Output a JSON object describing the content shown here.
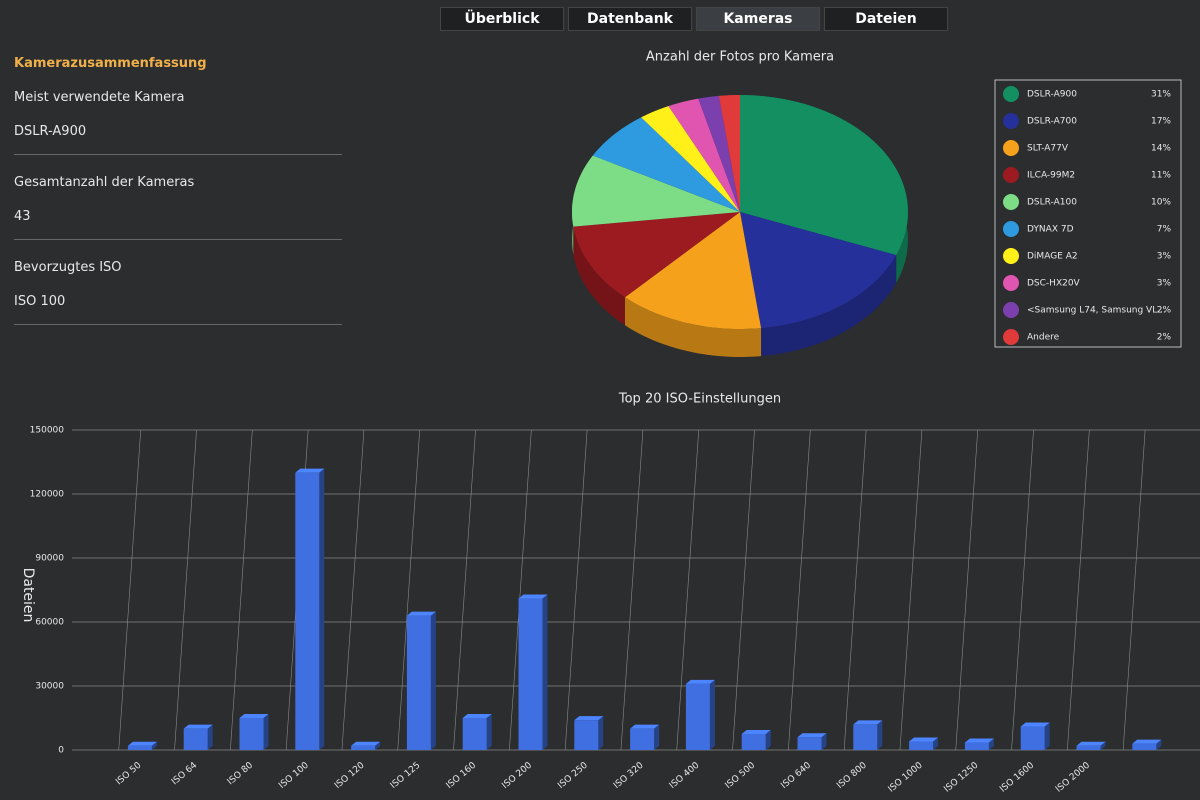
{
  "tabs": [
    "Überblick",
    "Datenbank",
    "Kameras",
    "Dateien"
  ],
  "active_tab": 2,
  "summary": {
    "title": "Kamerazusammenfassung",
    "items": [
      {
        "label": "Meist verwendete Kamera",
        "value": "DSLR-A900"
      },
      {
        "label": "Gesamtanzahl der Kameras",
        "value": "43"
      },
      {
        "label": "Bevorzugtes ISO",
        "value": "ISO 100"
      }
    ]
  },
  "chart_data": [
    {
      "type": "pie",
      "title": "Anzahl der Fotos pro Kamera",
      "categories": [
        "DSLR-A900",
        "DSLR-A700",
        "SLT-A77V",
        "ILCA-99M2",
        "DSLR-A100",
        "DYNAX 7D",
        "DiMAGE A2",
        "DSC-HX20V",
        "<Samsung L74, Samsung VL...",
        "Andere"
      ],
      "values": [
        31,
        17,
        14,
        11,
        10,
        7,
        3,
        3,
        2,
        2
      ],
      "value_labels": [
        "31%",
        "17%",
        "14%",
        "11%",
        "10%",
        "7%",
        "3%",
        "3%",
        "2%",
        "2%"
      ],
      "colors": [
        "#138f62",
        "#25309a",
        "#f5a11c",
        "#9b1b20",
        "#7ddd86",
        "#2e9ae0",
        "#fff01a",
        "#e055b0",
        "#7b3fae",
        "#e03a3a"
      ],
      "legend": "right"
    },
    {
      "type": "bar",
      "title": "Top 20 ISO-Einstellungen",
      "y_label": "Dateien",
      "categories": [
        "ISO 50",
        "ISO 64",
        "ISO 80",
        "ISO 100",
        "ISO 120",
        "ISO 125",
        "ISO 160",
        "ISO 200",
        "ISO 250",
        "ISO 320",
        "ISO 400",
        "ISO 500",
        "ISO 640",
        "ISO 800",
        "ISO 1000",
        "ISO 1250",
        "ISO 1600",
        "ISO 2000",
        null
      ],
      "values": [
        2000,
        10000,
        15000,
        130000,
        2000,
        63000,
        15000,
        71000,
        14000,
        10000,
        31000,
        7500,
        6000,
        12000,
        4000,
        3500,
        11000,
        2000,
        3000
      ],
      "color": "#3f6fe0",
      "ylim": [
        0,
        150000
      ],
      "yticks": [
        0,
        30000,
        60000,
        90000,
        120000,
        150000
      ],
      "grid": true
    }
  ]
}
